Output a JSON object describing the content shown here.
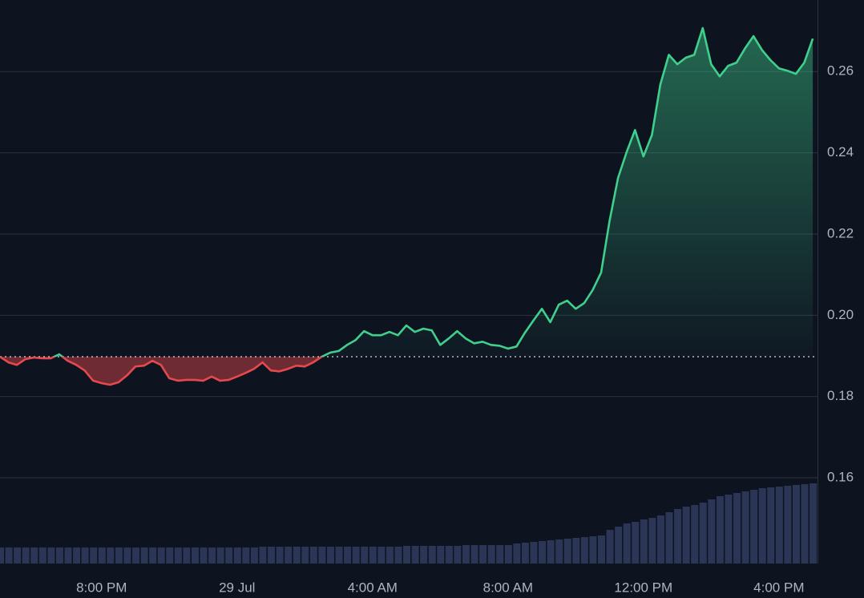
{
  "chart_data": {
    "type": "line",
    "baseline": 0.1898,
    "up_color": "#3fd08d",
    "down_color": "#e5484d",
    "volume_color": "#2b3656",
    "grid": true,
    "xlim": [
      -7,
      17.14
    ],
    "ylim": [
      0.1389,
      0.2776
    ],
    "yticks": [
      0.16,
      0.18,
      0.2,
      0.22,
      0.24,
      0.26
    ],
    "ytick_labels": [
      "0.16",
      "0.18",
      "0.20",
      "0.22",
      "0.24",
      "0.26"
    ],
    "xticks": [
      {
        "value": -4,
        "label": "8:00 PM"
      },
      {
        "value": 0,
        "label": "29 Jul"
      },
      {
        "value": 4,
        "label": "4:00 AM"
      },
      {
        "value": 8,
        "label": "8:00 AM"
      },
      {
        "value": 12,
        "label": "12:00 PM"
      },
      {
        "value": 16,
        "label": "4:00 PM"
      }
    ],
    "x": [
      -7,
      -6.75,
      -6.5,
      -6.25,
      -6,
      -5.75,
      -5.5,
      -5.25,
      -5,
      -4.75,
      -4.5,
      -4.25,
      -4,
      -3.75,
      -3.5,
      -3.25,
      -3,
      -2.75,
      -2.5,
      -2.25,
      -2,
      -1.75,
      -1.5,
      -1.25,
      -1,
      -0.75,
      -0.5,
      -0.25,
      0,
      0.25,
      0.5,
      0.75,
      1,
      1.25,
      1.5,
      1.75,
      2,
      2.25,
      2.5,
      2.75,
      3,
      3.25,
      3.5,
      3.75,
      4,
      4.25,
      4.5,
      4.75,
      5,
      5.25,
      5.5,
      5.75,
      6,
      6.25,
      6.5,
      6.75,
      7,
      7.25,
      7.5,
      7.75,
      8,
      8.25,
      8.5,
      8.75,
      9,
      9.25,
      9.5,
      9.75,
      10,
      10.25,
      10.5,
      10.75,
      11,
      11.25,
      11.5,
      11.75,
      12,
      12.25,
      12.5,
      12.75,
      13,
      13.25,
      13.5,
      13.75,
      14,
      14.25,
      14.5,
      14.75,
      15,
      15.25,
      15.5,
      15.75,
      16,
      16.25,
      16.5,
      16.75,
      17
    ],
    "values": [
      0.1898,
      0.1884,
      0.1878,
      0.1892,
      0.1896,
      0.1894,
      0.1894,
      0.1904,
      0.1888,
      0.1878,
      0.1864,
      0.1839,
      0.1833,
      0.1829,
      0.1835,
      0.1852,
      0.1874,
      0.1876,
      0.1888,
      0.1878,
      0.1845,
      0.1839,
      0.1841,
      0.1841,
      0.1839,
      0.1849,
      0.1839,
      0.1841,
      0.1849,
      0.1858,
      0.1868,
      0.1884,
      0.1864,
      0.1862,
      0.1868,
      0.1876,
      0.1874,
      0.1884,
      0.1898,
      0.1908,
      0.1912,
      0.1927,
      0.1939,
      0.1961,
      0.1951,
      0.1951,
      0.1959,
      0.1951,
      0.1975,
      0.1959,
      0.1967,
      0.1963,
      0.1927,
      0.1943,
      0.1961,
      0.1943,
      0.1931,
      0.1935,
      0.1927,
      0.1925,
      0.1918,
      0.1923,
      0.1957,
      0.1987,
      0.2016,
      0.1983,
      0.2026,
      0.2036,
      0.2016,
      0.203,
      0.2062,
      0.2105,
      0.2233,
      0.2338,
      0.2401,
      0.2456,
      0.2391,
      0.2444,
      0.2568,
      0.2641,
      0.2618,
      0.2634,
      0.2641,
      0.2707,
      0.2618,
      0.2588,
      0.2614,
      0.2622,
      0.2657,
      0.2687,
      0.2653,
      0.2628,
      0.2608,
      0.2602,
      0.2594,
      0.2622,
      0.2681
    ],
    "volume": [
      20,
      20,
      20,
      20,
      20,
      20,
      20,
      20,
      20,
      20,
      20,
      20,
      20,
      20,
      20,
      20,
      20,
      20,
      20,
      20,
      20,
      20,
      20,
      20,
      20,
      20,
      20,
      20,
      20,
      20,
      20,
      21,
      21,
      21,
      21,
      21,
      21,
      21,
      21,
      21,
      21,
      21,
      21,
      21,
      21,
      21,
      21,
      21,
      22,
      22,
      22,
      22,
      22,
      22,
      22,
      23,
      23,
      23,
      23,
      23,
      23,
      25,
      26,
      27,
      28,
      29,
      30,
      31,
      32,
      33,
      34,
      35,
      42,
      46,
      50,
      52,
      55,
      57,
      60,
      64,
      68,
      71,
      73,
      76,
      80,
      84,
      86,
      88,
      90,
      92,
      94,
      95,
      96,
      97,
      98,
      99,
      100
    ]
  }
}
